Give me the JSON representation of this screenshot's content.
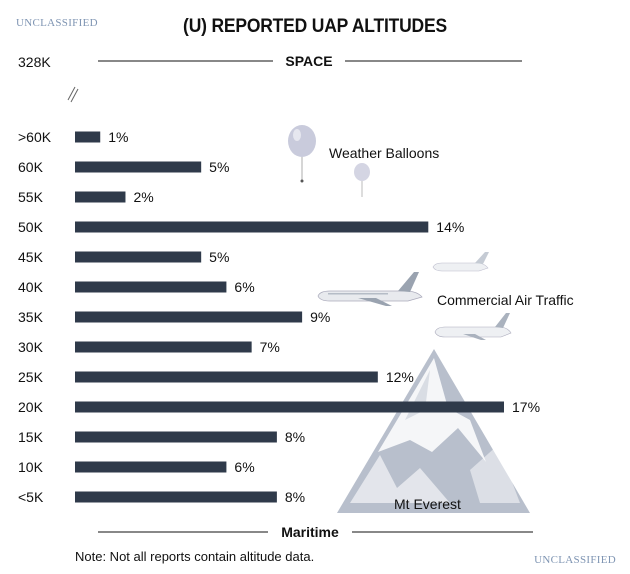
{
  "classification": {
    "top": "UNCLASSIFIED",
    "bottom": "UNCLASSIFIED"
  },
  "note": "Note: Not all reports contain altitude data.",
  "colors": {
    "bar": "#2f3a4a",
    "mountain": "#b8bfcc",
    "balloon": "#c9cbdc"
  },
  "chart_data": {
    "type": "bar",
    "orientation": "horizontal",
    "title": "(U) REPORTED UAP ALTITUDES",
    "categories": [
      ">60K",
      "60K",
      "55K",
      "50K",
      "45K",
      "40K",
      "35K",
      "30K",
      "25K",
      "20K",
      "15K",
      "10K",
      "<5K"
    ],
    "values": [
      1,
      5,
      2,
      14,
      5,
      6,
      9,
      7,
      12,
      17,
      8,
      6,
      8
    ],
    "value_labels": [
      "1%",
      "5%",
      "2%",
      "14%",
      "5%",
      "6%",
      "9%",
      "7%",
      "12%",
      "17%",
      "8%",
      "6%",
      "8%"
    ],
    "top_tick_label": "328K",
    "boundaries": {
      "top": "SPACE",
      "bottom": "Maritime"
    },
    "annotations": [
      "Weather Balloons",
      "Commercial Air Traffic",
      "Mt Everest"
    ],
    "xlim": [
      0,
      17
    ],
    "legend": "none",
    "grid": false
  }
}
